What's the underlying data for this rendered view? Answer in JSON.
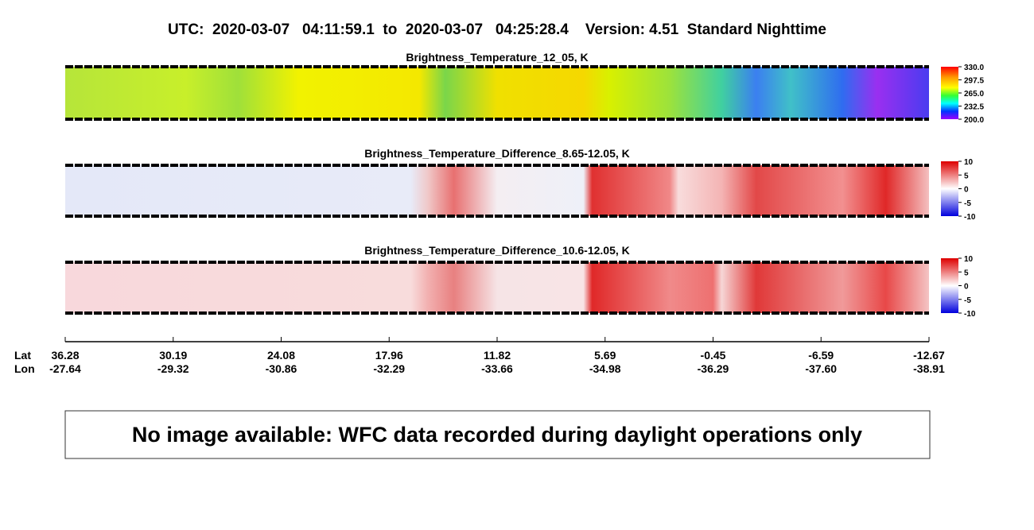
{
  "header": {
    "title": "UTC:  2020-03-07   04:11:59.1  to  2020-03-07   04:25:28.4    Version: 4.51  Standard Nighttime"
  },
  "panels": [
    {
      "title": "Brightness_Temperature_12_05, K",
      "colorbar_ticks": [
        "330.0",
        "297.5",
        "265.0",
        "232.5",
        "200.0"
      ]
    },
    {
      "title": "Brightness_Temperature_Difference_8.65-12.05, K",
      "colorbar_ticks": [
        "10",
        "5",
        "0",
        "-5",
        "-10"
      ]
    },
    {
      "title": "Brightness_Temperature_Difference_10.6-12.05, K",
      "colorbar_ticks": [
        "10",
        "5",
        "0",
        "-5",
        "-10"
      ]
    }
  ],
  "axis": {
    "lat_label": "Lat",
    "lon_label": "Lon",
    "lat": [
      "36.28",
      "30.19",
      "24.08",
      "17.96",
      "11.82",
      "5.69",
      "-0.45",
      "-6.59",
      "-12.67"
    ],
    "lon": [
      "-27.64",
      "-29.32",
      "-30.86",
      "-32.29",
      "-33.66",
      "-34.98",
      "-36.29",
      "-37.60",
      "-38.91"
    ]
  },
  "message": "No image available: WFC data recorded during daylight operations only"
}
